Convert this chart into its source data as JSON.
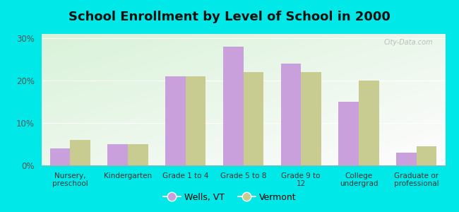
{
  "title": "School Enrollment by Level of School in 2000",
  "categories": [
    "Nursery,\npreschool",
    "Kindergarten",
    "Grade 1 to 4",
    "Grade 5 to 8",
    "Grade 9 to\n12",
    "College\nundergrad",
    "Graduate or\nprofessional"
  ],
  "wells_vt": [
    4.0,
    5.0,
    21.0,
    28.0,
    24.0,
    15.0,
    3.0
  ],
  "vermont": [
    6.0,
    5.0,
    21.0,
    22.0,
    22.0,
    20.0,
    4.5
  ],
  "wells_color": "#c9a0dc",
  "vermont_color": "#c8cc90",
  "background_color": "#00e8e8",
  "ylabel_ticks": [
    "0%",
    "10%",
    "20%",
    "30%"
  ],
  "yticks": [
    0,
    10,
    20,
    30
  ],
  "ylim": [
    0,
    31
  ],
  "title_fontsize": 13,
  "legend_wells": "Wells, VT",
  "legend_vermont": "Vermont",
  "watermark": "City-Data.com"
}
